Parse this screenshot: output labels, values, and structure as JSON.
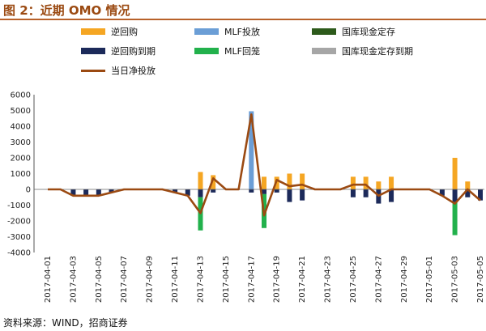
{
  "title": "图 2：近期 OMO 情况",
  "source": "资料来源：WIND，招商证券",
  "colors": {
    "reverse_repo": "#f5a623",
    "mlf_put": "#6b9ed6",
    "treasury_deposit": "#2d5a1b",
    "reverse_repo_due": "#1c2a5a",
    "mlf_due": "#22b14c",
    "treasury_deposit_due": "#a6a6a6",
    "net_injection": "#9b4a12",
    "title_rule": "#b8612a"
  },
  "legend": [
    {
      "key": "reverse_repo",
      "label": "逆回购",
      "kind": "bar"
    },
    {
      "key": "mlf_put",
      "label": "MLF投放",
      "kind": "bar"
    },
    {
      "key": "treasury_deposit",
      "label": "国库现金定存",
      "kind": "bar"
    },
    {
      "key": "reverse_repo_due",
      "label": "逆回购到期",
      "kind": "bar"
    },
    {
      "key": "mlf_due",
      "label": "MLF回笼",
      "kind": "bar"
    },
    {
      "key": "treasury_deposit_due",
      "label": "国库现金定存到期",
      "kind": "bar"
    },
    {
      "key": "net_injection",
      "label": "当日净投放",
      "kind": "line"
    }
  ],
  "chart_data": {
    "type": "bar",
    "ylim": [
      -4000,
      6000
    ],
    "yticks": [
      -4000,
      -3000,
      -2000,
      -1000,
      0,
      1000,
      2000,
      3000,
      4000,
      5000,
      6000
    ],
    "x_labels": [
      "2017-04-01",
      "2017-04-03",
      "2017-04-05",
      "2017-04-07",
      "2017-04-09",
      "2017-04-11",
      "2017-04-13",
      "2017-04-15",
      "2017-04-17",
      "2017-04-19",
      "2017-04-21",
      "2017-04-23",
      "2017-04-25",
      "2017-04-27",
      "2017-04-29",
      "2017-05-01",
      "2017-05-03",
      "2017-05-05"
    ],
    "x": [
      "2017-04-01",
      "2017-04-02",
      "2017-04-03",
      "2017-04-04",
      "2017-04-05",
      "2017-04-06",
      "2017-04-07",
      "2017-04-08",
      "2017-04-09",
      "2017-04-10",
      "2017-04-11",
      "2017-04-12",
      "2017-04-13",
      "2017-04-14",
      "2017-04-15",
      "2017-04-16",
      "2017-04-17",
      "2017-04-18",
      "2017-04-19",
      "2017-04-20",
      "2017-04-21",
      "2017-04-22",
      "2017-04-23",
      "2017-04-24",
      "2017-04-25",
      "2017-04-26",
      "2017-04-27",
      "2017-04-28",
      "2017-04-29",
      "2017-04-30",
      "2017-05-01",
      "2017-05-02",
      "2017-05-03",
      "2017-05-04",
      "2017-05-05"
    ],
    "series": [
      {
        "name": "逆回购",
        "key": "reverse_repo",
        "values": [
          0,
          0,
          0,
          0,
          0,
          0,
          0,
          0,
          0,
          0,
          0,
          0,
          1100,
          900,
          0,
          0,
          0,
          800,
          800,
          1000,
          1000,
          0,
          0,
          0,
          800,
          800,
          500,
          800,
          0,
          0,
          0,
          0,
          2000,
          500,
          0
        ]
      },
      {
        "name": "MLF投放",
        "key": "mlf_put",
        "values": [
          0,
          0,
          0,
          0,
          0,
          0,
          0,
          0,
          0,
          0,
          0,
          0,
          0,
          0,
          0,
          0,
          4950,
          0,
          0,
          0,
          0,
          0,
          0,
          0,
          0,
          0,
          0,
          0,
          0,
          0,
          0,
          0,
          0,
          0,
          0
        ]
      },
      {
        "name": "国库现金定存",
        "key": "treasury_deposit",
        "values": [
          0,
          0,
          0,
          0,
          0,
          0,
          0,
          0,
          0,
          0,
          0,
          0,
          0,
          0,
          0,
          0,
          0,
          0,
          0,
          0,
          0,
          0,
          0,
          0,
          0,
          0,
          0,
          0,
          0,
          0,
          0,
          0,
          0,
          0,
          0
        ]
      },
      {
        "name": "逆回购到期",
        "key": "reverse_repo_due",
        "values": [
          0,
          0,
          -400,
          -400,
          -400,
          -200,
          0,
          0,
          0,
          0,
          -200,
          -400,
          -500,
          -200,
          0,
          0,
          -200,
          -300,
          -200,
          -800,
          -700,
          0,
          0,
          0,
          -500,
          -500,
          -900,
          -800,
          0,
          0,
          0,
          -400,
          -800,
          -500,
          -700
        ]
      },
      {
        "name": "MLF回笼",
        "key": "mlf_due",
        "values": [
          0,
          0,
          0,
          0,
          0,
          0,
          0,
          0,
          0,
          0,
          0,
          0,
          -2100,
          0,
          0,
          0,
          0,
          -2150,
          0,
          0,
          0,
          0,
          0,
          0,
          0,
          0,
          0,
          0,
          0,
          0,
          0,
          0,
          -2100,
          0,
          0
        ]
      },
      {
        "name": "国库现金定存到期",
        "key": "treasury_deposit_due",
        "values": [
          0,
          0,
          0,
          0,
          0,
          0,
          0,
          0,
          0,
          0,
          0,
          0,
          0,
          0,
          0,
          0,
          0,
          0,
          0,
          0,
          0,
          0,
          0,
          0,
          0,
          0,
          0,
          0,
          0,
          0,
          0,
          0,
          0,
          0,
          0
        ]
      },
      {
        "name": "当日净投放",
        "key": "net_injection",
        "type": "line",
        "values": [
          0,
          0,
          -400,
          -400,
          -400,
          -200,
          0,
          0,
          0,
          0,
          -200,
          -400,
          -1500,
          700,
          0,
          0,
          4750,
          -1650,
          600,
          200,
          300,
          0,
          0,
          0,
          300,
          300,
          -400,
          0,
          0,
          0,
          0,
          -400,
          -900,
          0,
          -700
        ]
      }
    ]
  }
}
